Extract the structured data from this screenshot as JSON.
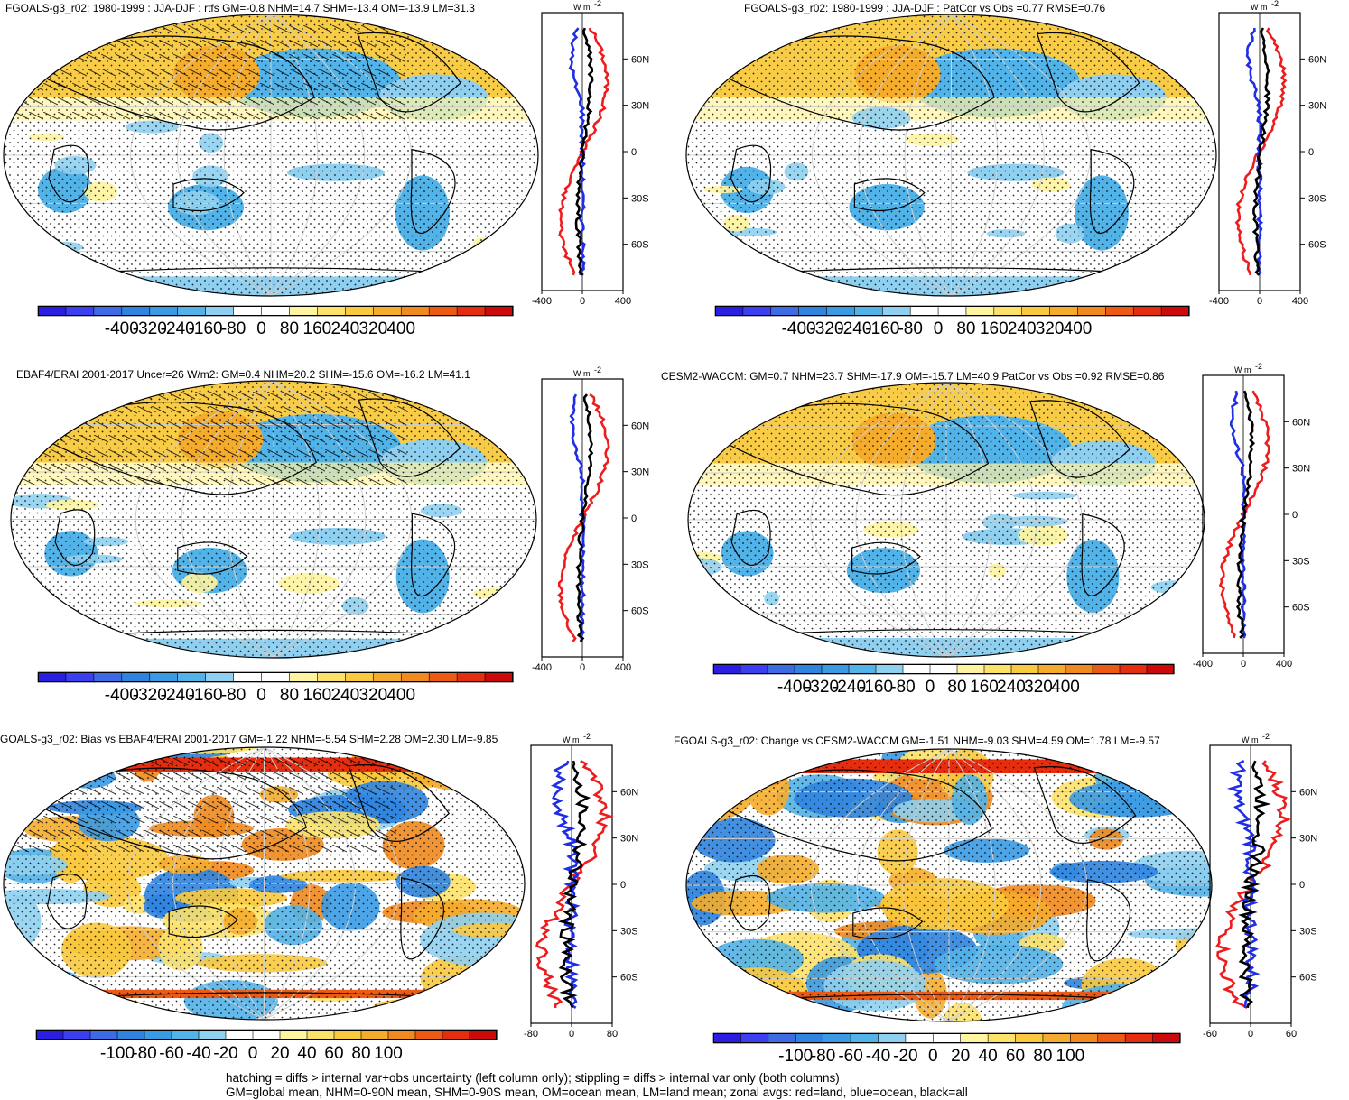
{
  "panels": [
    {
      "id": "p1",
      "title": "FGOALS-g3_r02: 1980-1999 : JJA-DJF : rtfs GM=-0.8 NHM=14.7 SHM=-13.4 OM=-13.9 LM=31.3",
      "colorbar_labels": [
        "-400",
        "-320",
        "-240",
        "-160",
        "-80",
        "0",
        "80",
        "160",
        "240",
        "320",
        "400"
      ],
      "zonal": {
        "unit": "W m",
        "unit_sup": "-2",
        "lat_labels": [
          "60N",
          "30N",
          "0",
          "30S",
          "60S"
        ],
        "x_labels": [
          "-400",
          "0",
          "400"
        ]
      },
      "hatching": true
    },
    {
      "id": "p2",
      "title": "FGOALS-g3_r02: 1980-1999 : JJA-DJF : PatCor vs Obs =0.77 RMSE=0.76",
      "colorbar_labels": [
        "-400",
        "-320",
        "-240",
        "-160",
        "-80",
        "0",
        "80",
        "160",
        "240",
        "320",
        "400"
      ],
      "zonal": {
        "unit": "W m",
        "unit_sup": "-2",
        "lat_labels": [
          "60N",
          "30N",
          "0",
          "30S",
          "60S"
        ],
        "x_labels": [
          "-400",
          "0",
          "400"
        ]
      },
      "hatching": false
    },
    {
      "id": "p3",
      "title": "EBAF4/ERAI 2001-2017 Uncer=26 W/m2: GM=0.4 NHM=20.2 SHM=-15.6 OM=-16.2 LM=41.1",
      "colorbar_labels": [
        "-400",
        "-320",
        "-240",
        "-160",
        "-80",
        "0",
        "80",
        "160",
        "240",
        "320",
        "400"
      ],
      "zonal": {
        "unit": "W m",
        "unit_sup": "-2",
        "lat_labels": [
          "60N",
          "30N",
          "0",
          "30S",
          "60S"
        ],
        "x_labels": [
          "-400",
          "0",
          "400"
        ]
      },
      "hatching": true
    },
    {
      "id": "p4",
      "title": "CESM2-WACCM: GM=0.7 NHM=23.7 SHM=-17.9 OM=-15.7 LM=40.9 PatCor vs Obs =0.92 RMSE=0.86",
      "colorbar_labels": [
        "-400",
        "-320",
        "-240",
        "-160",
        "-80",
        "0",
        "80",
        "160",
        "240",
        "320",
        "400"
      ],
      "zonal": {
        "unit": "W m",
        "unit_sup": "-2",
        "lat_labels": [
          "60N",
          "30N",
          "0",
          "30S",
          "60S"
        ],
        "x_labels": [
          "-400",
          "0",
          "400"
        ]
      },
      "hatching": false
    },
    {
      "id": "p5",
      "title": "GOALS-g3_r02: Bias vs EBAF4/ERAI 2001-2017 GM=-1.22 NHM=-5.54 SHM=2.28 OM=2.30 LM=-9.85",
      "colorbar_labels": [
        "-100",
        "-80",
        "-60",
        "-40",
        "-20",
        "0",
        "20",
        "40",
        "60",
        "80",
        "100"
      ],
      "zonal": {
        "unit": "W m",
        "unit_sup": "-2",
        "lat_labels": [
          "60N",
          "30N",
          "0",
          "30S",
          "60S"
        ],
        "x_labels": [
          "-80",
          "0",
          "80"
        ]
      },
      "hatching": true
    },
    {
      "id": "p6",
      "title": "FGOALS-g3_r02: Change vs CESM2-WACCM GM=-1.51 NHM=-9.03 SHM=4.59 OM=1.78 LM=-9.57",
      "colorbar_labels": [
        "-100",
        "-80",
        "-60",
        "-40",
        "-20",
        "0",
        "20",
        "40",
        "60",
        "80",
        "100"
      ],
      "zonal": {
        "unit": "W m",
        "unit_sup": "-2",
        "lat_labels": [
          "60N",
          "30N",
          "0",
          "30S",
          "60S"
        ],
        "x_labels": [
          "-60",
          "0",
          "60"
        ]
      },
      "hatching": false
    }
  ],
  "colors": [
    "#2a1ee0",
    "#3b3ff0",
    "#3d6be6",
    "#2f84e0",
    "#3a9ae4",
    "#52b3e8",
    "#8fd0f0",
    "#ffffff",
    "#ffffff",
    "#fff4a0",
    "#fde26a",
    "#f9c93e",
    "#f5ac2c",
    "#f08a1e",
    "#ec5a14",
    "#e52d10",
    "#cc0a0a"
  ],
  "line_colors": {
    "land": "#ee1c1c",
    "ocean": "#1f2ee6",
    "all": "#000000"
  },
  "footer": {
    "line1": "hatching = diffs > internal var+obs uncertainty (left column only); stippling = diffs > internal var only (both columns)",
    "line2": "GM=global mean, NHM=0-90N mean, SHM=0-90S mean, OM=ocean mean, LM=land mean; zonal avgs: red=land, blue=ocean, black=all"
  }
}
